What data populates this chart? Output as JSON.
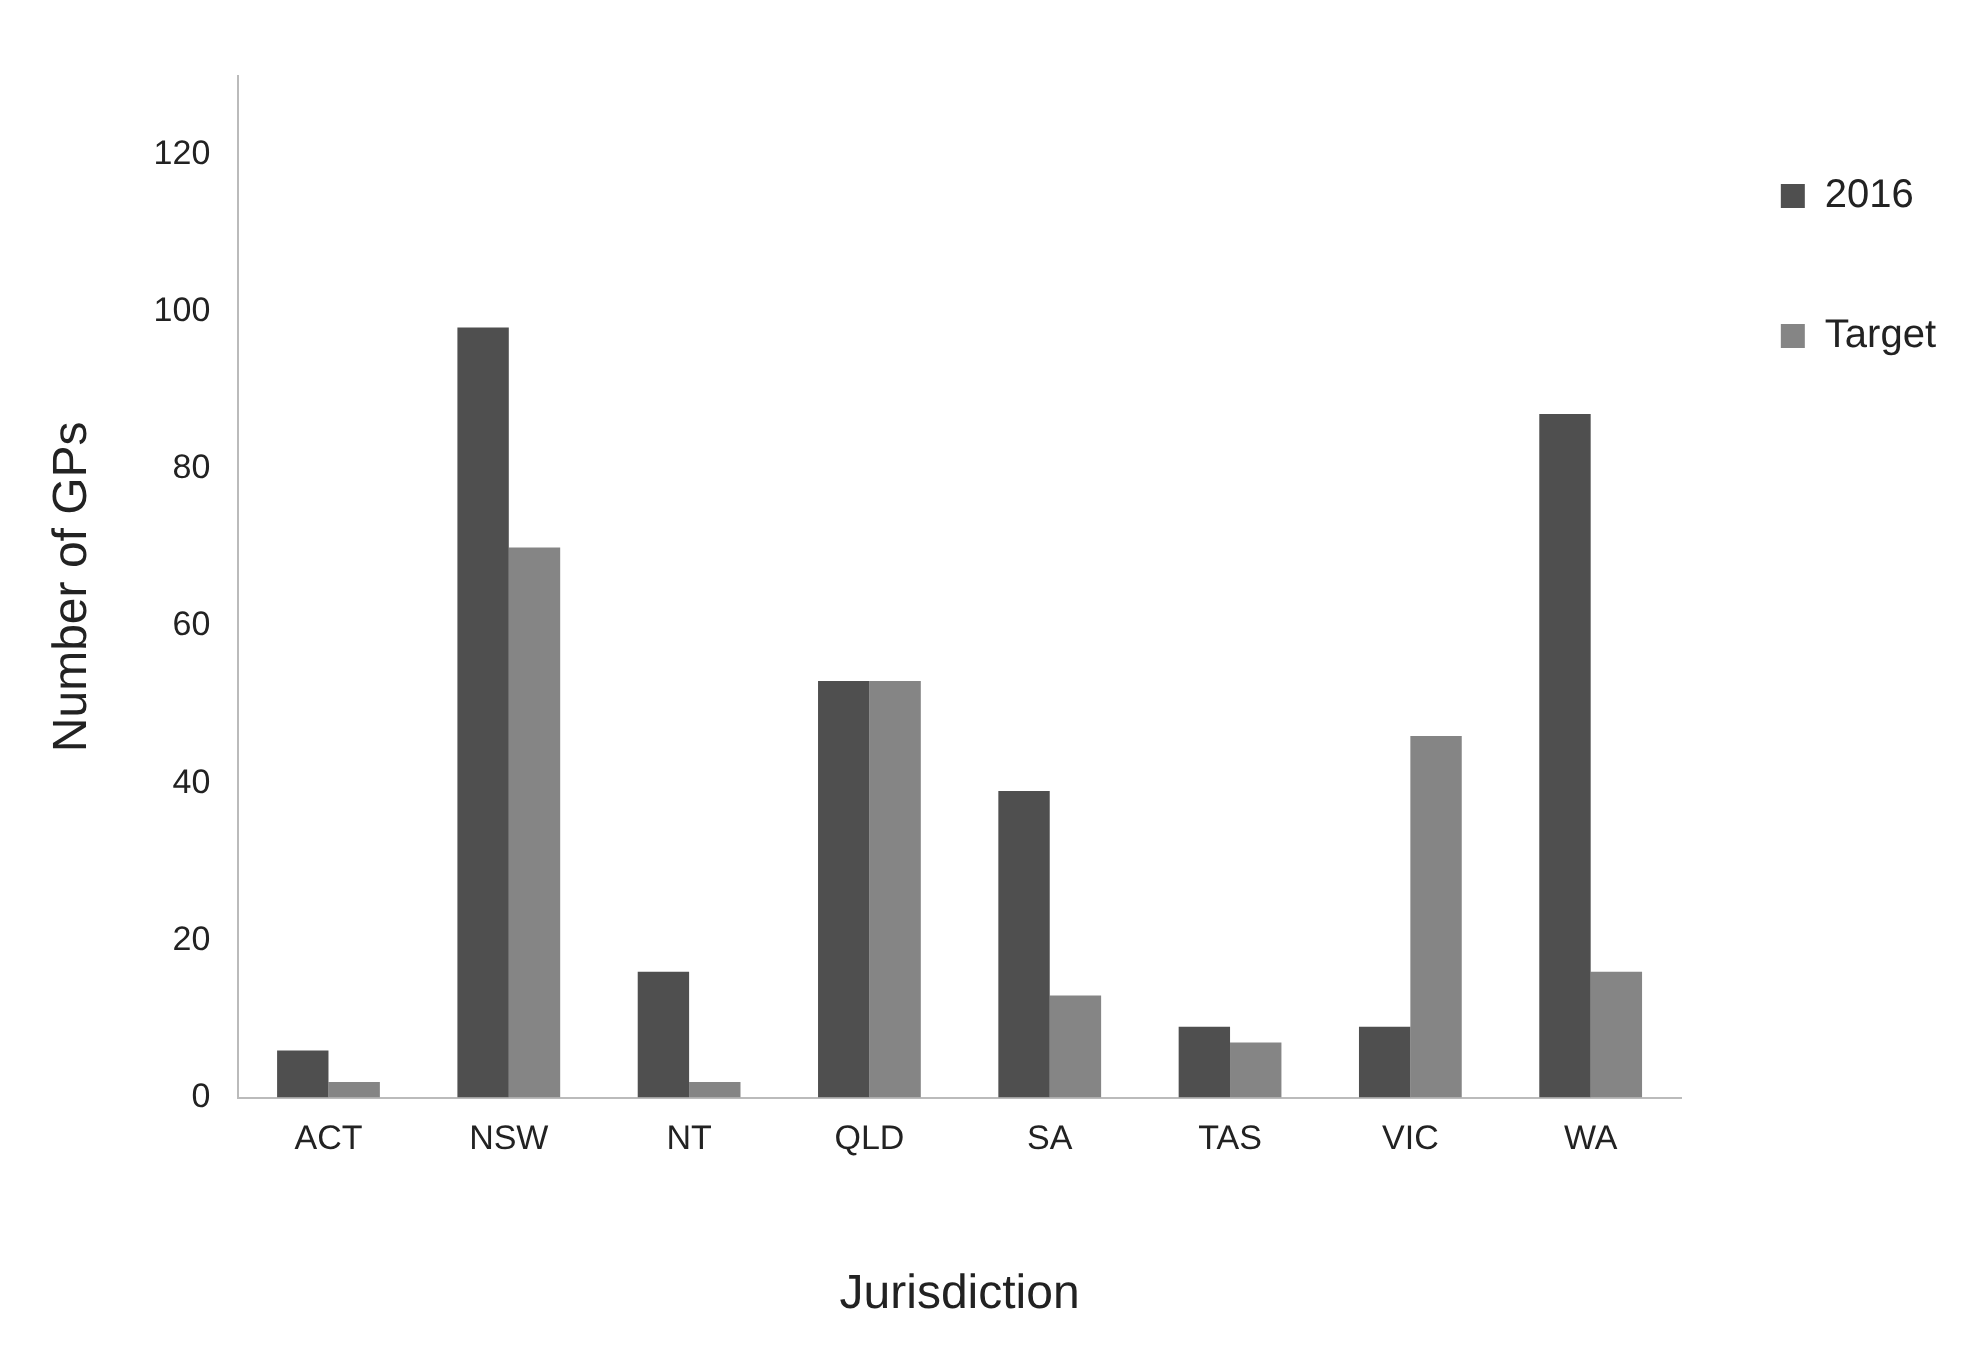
{
  "chart_data": {
    "type": "bar",
    "xlabel": "Jurisdiction",
    "ylabel": "Number of GPs",
    "categories": [
      "ACT",
      "NSW",
      "NT",
      "QLD",
      "SA",
      "TAS",
      "VIC",
      "WA"
    ],
    "series": [
      {
        "name": "2016",
        "color": "#4f4f4f",
        "values": [
          6,
          98,
          16,
          53,
          39,
          9,
          9,
          87
        ]
      },
      {
        "name": "Target",
        "color": "#858585",
        "values": [
          2,
          70,
          2,
          53,
          13,
          7,
          46,
          16
        ]
      }
    ],
    "ylim": [
      0,
      130
    ],
    "yticks": [
      0,
      20,
      40,
      60,
      80,
      100,
      120
    ],
    "grid": false,
    "legend": "top right"
  }
}
